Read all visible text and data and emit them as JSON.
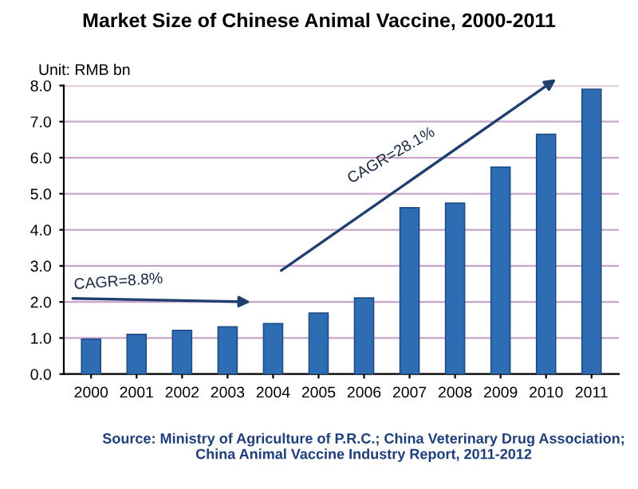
{
  "chart_data": {
    "type": "bar",
    "title": "Market Size of Chinese Animal Vaccine, 2000-2011",
    "ylabel": "Unit: RMB bn",
    "categories": [
      "2000",
      "2001",
      "2002",
      "2003",
      "2004",
      "2005",
      "2006",
      "2007",
      "2008",
      "2009",
      "2010",
      "2011"
    ],
    "values": [
      0.97,
      1.1,
      1.21,
      1.31,
      1.4,
      1.69,
      2.11,
      4.61,
      4.74,
      5.74,
      6.65,
      7.9
    ],
    "color": "#2e6db4",
    "ylim": [
      0,
      8
    ],
    "yticks": [
      {
        "value": 0,
        "label": "0.0"
      },
      {
        "value": 1,
        "label": "1.0"
      },
      {
        "value": 2,
        "label": "2.0"
      },
      {
        "value": 3,
        "label": "3.0"
      },
      {
        "value": 4,
        "label": "4.0"
      },
      {
        "value": 5,
        "label": "5.0"
      },
      {
        "value": 6,
        "label": "6.0"
      },
      {
        "value": 7,
        "label": "7.0"
      },
      {
        "value": 8,
        "label": "8.0"
      }
    ],
    "grid": "y",
    "annotations": [
      "CAGR=8.8%",
      "CAGR=28.1%",
      "Source: Ministry of Agriculture of P.R.C.; China Veterinary Drug Association; China Animal Vaccine Industry Report, 2011-2012"
    ]
  }
}
